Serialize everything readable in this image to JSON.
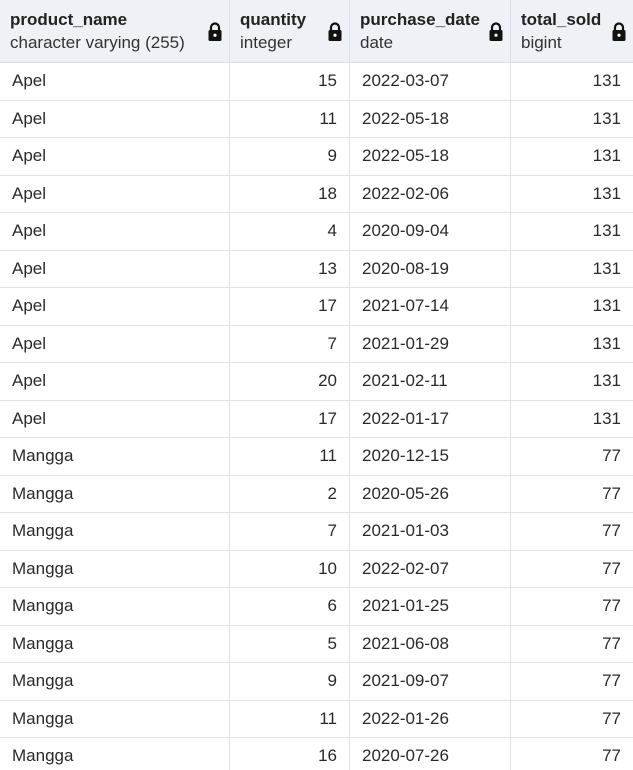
{
  "columns": [
    {
      "name": "product_name",
      "type": "character varying (255)",
      "icon": "lock-icon"
    },
    {
      "name": "quantity",
      "type": "integer",
      "icon": "lock-icon"
    },
    {
      "name": "purchase_date",
      "type": "date",
      "icon": "lock-icon"
    },
    {
      "name": "total_sold",
      "type": "bigint",
      "icon": "lock-icon"
    }
  ],
  "rows": [
    [
      "Apel",
      "15",
      "2022-03-07",
      "131"
    ],
    [
      "Apel",
      "11",
      "2022-05-18",
      "131"
    ],
    [
      "Apel",
      "9",
      "2022-05-18",
      "131"
    ],
    [
      "Apel",
      "18",
      "2022-02-06",
      "131"
    ],
    [
      "Apel",
      "4",
      "2020-09-04",
      "131"
    ],
    [
      "Apel",
      "13",
      "2020-08-19",
      "131"
    ],
    [
      "Apel",
      "17",
      "2021-07-14",
      "131"
    ],
    [
      "Apel",
      "7",
      "2021-01-29",
      "131"
    ],
    [
      "Apel",
      "20",
      "2021-02-11",
      "131"
    ],
    [
      "Apel",
      "17",
      "2022-01-17",
      "131"
    ],
    [
      "Mangga",
      "11",
      "2020-12-15",
      "77"
    ],
    [
      "Mangga",
      "2",
      "2020-05-26",
      "77"
    ],
    [
      "Mangga",
      "7",
      "2021-01-03",
      "77"
    ],
    [
      "Mangga",
      "10",
      "2022-02-07",
      "77"
    ],
    [
      "Mangga",
      "6",
      "2021-01-25",
      "77"
    ],
    [
      "Mangga",
      "5",
      "2021-06-08",
      "77"
    ],
    [
      "Mangga",
      "9",
      "2021-09-07",
      "77"
    ],
    [
      "Mangga",
      "11",
      "2022-01-26",
      "77"
    ],
    [
      "Mangga",
      "16",
      "2020-07-26",
      "77"
    ]
  ]
}
